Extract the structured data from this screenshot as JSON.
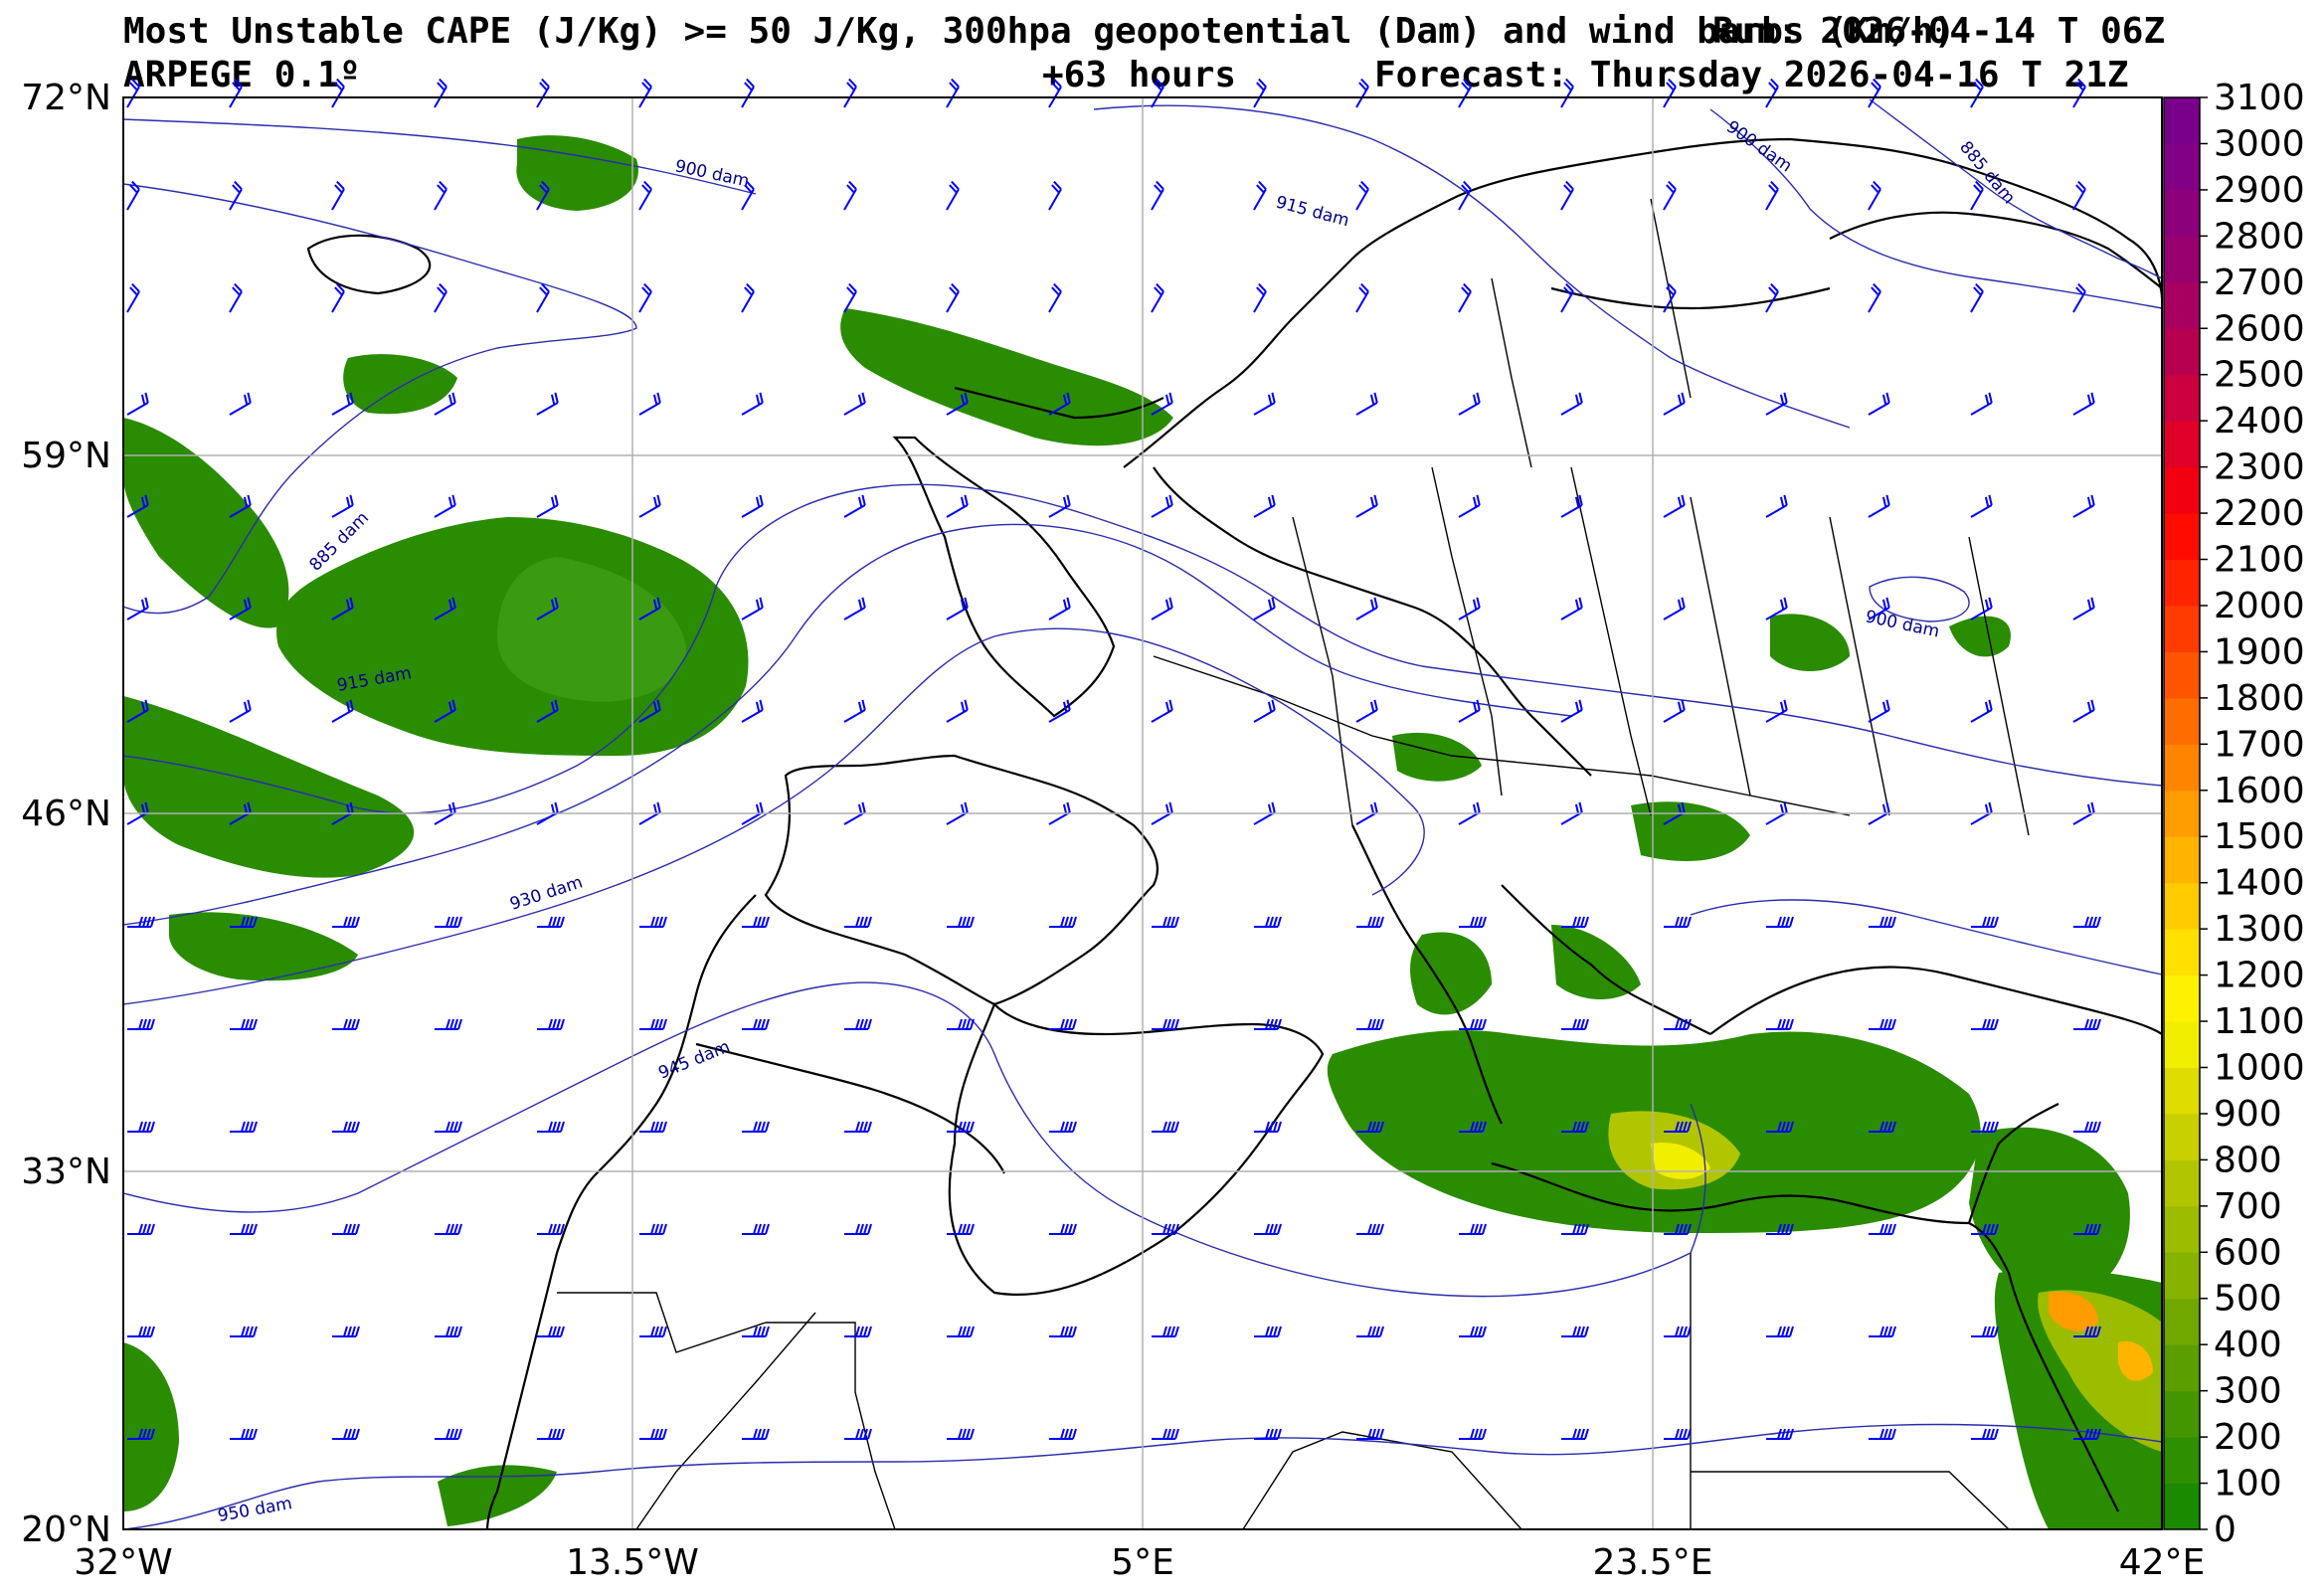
{
  "header": {
    "title_line1": "Most Unstable CAPE (J/Kg) >= 50 J/Kg, 300hpa geopotential (Dam) and wind barbs (Km/h)",
    "run": "Run: 2026-04-14 T 06Z",
    "model": "ARPEGE 0.1º",
    "lead": "+63 hours",
    "forecast": "Forecast: Thursday 2026-04-16 T 21Z"
  },
  "axes": {
    "lat_labels": [
      "72°N",
      "59°N",
      "46°N",
      "33°N",
      "20°N"
    ],
    "lon_labels": [
      "32°W",
      "13.5°W",
      "5°E",
      "23.5°E",
      "42°E"
    ]
  },
  "colorbar": {
    "ticks": [
      "0",
      "100",
      "200",
      "300",
      "400",
      "500",
      "600",
      "700",
      "800",
      "900",
      "1000",
      "1100",
      "1200",
      "1300",
      "1400",
      "1500",
      "1600",
      "1700",
      "1800",
      "1900",
      "2000",
      "2100",
      "2200",
      "2300",
      "2400",
      "2500",
      "2600",
      "2700",
      "2800",
      "2900",
      "3000",
      "3100"
    ],
    "colors": [
      "#1a8a00",
      "#2e8f00",
      "#449600",
      "#5a9e00",
      "#70a800",
      "#86b200",
      "#9cbc00",
      "#b2c600",
      "#c8d000",
      "#dedc00",
      "#f2ee00",
      "#fff200",
      "#ffe000",
      "#ffcb00",
      "#ffb400",
      "#ff9c00",
      "#ff8400",
      "#ff6c00",
      "#ff5400",
      "#ff3c00",
      "#ff2400",
      "#ff0c00",
      "#f20010",
      "#e00028",
      "#cc003c",
      "#b80050",
      "#a80060",
      "#980070",
      "#8c007c",
      "#820086",
      "#7a008c"
    ]
  },
  "contours": {
    "labels": [
      "900 dam",
      "915 dam",
      "930 dam",
      "945 dam",
      "950 dam",
      "885 dam",
      "900 dam",
      "915 dam",
      "885 dam",
      "900 dam"
    ],
    "color": "#2b2bb0"
  },
  "legend_colors": {
    "cape_green": "#2a8c00",
    "barb": "#0000ff",
    "coast": "#000000",
    "grid": "#b0b0b0"
  }
}
